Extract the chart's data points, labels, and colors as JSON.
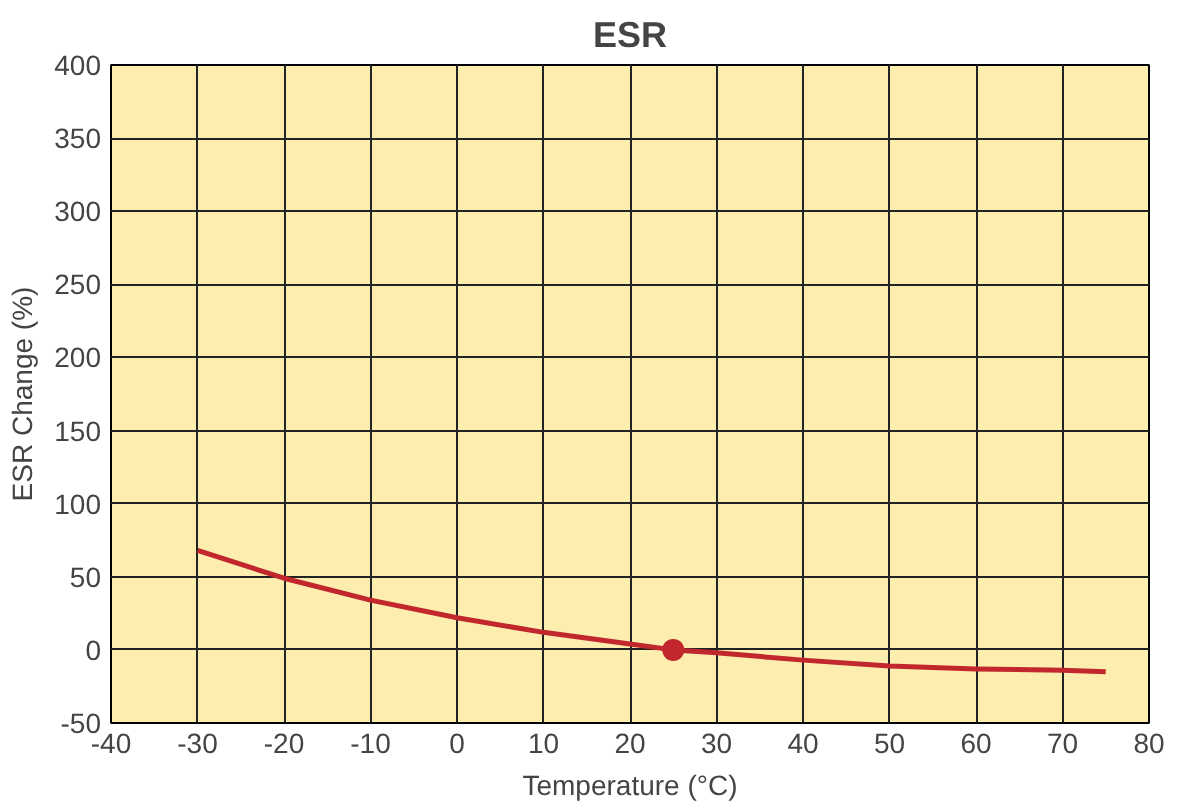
{
  "chart_data": {
    "type": "line",
    "title": "ESR",
    "xlabel": "Temperature (°C)",
    "ylabel": "ESR Change (%)",
    "xlim": [
      -40,
      80
    ],
    "xticks": [
      -40,
      -30,
      -20,
      -10,
      0,
      10,
      20,
      30,
      40,
      50,
      60,
      70,
      80
    ],
    "ylim": [
      -50,
      400
    ],
    "yticks": [
      -50,
      0,
      50,
      100,
      150,
      200,
      250,
      300,
      350,
      400
    ],
    "grid": true,
    "series": [
      {
        "color": "#c1272d",
        "x": [
          -30,
          -20,
          -10,
          0,
          10,
          20,
          25,
          30,
          40,
          50,
          60,
          70,
          75
        ],
        "values": [
          68,
          49,
          34,
          22,
          12,
          4,
          0,
          -2,
          -7,
          -11,
          -13,
          -14,
          -15
        ]
      },
      {
        "type": "scatter",
        "marker": "circle",
        "color": "#c1272d",
        "x": [
          25
        ],
        "values": [
          0
        ]
      }
    ]
  }
}
